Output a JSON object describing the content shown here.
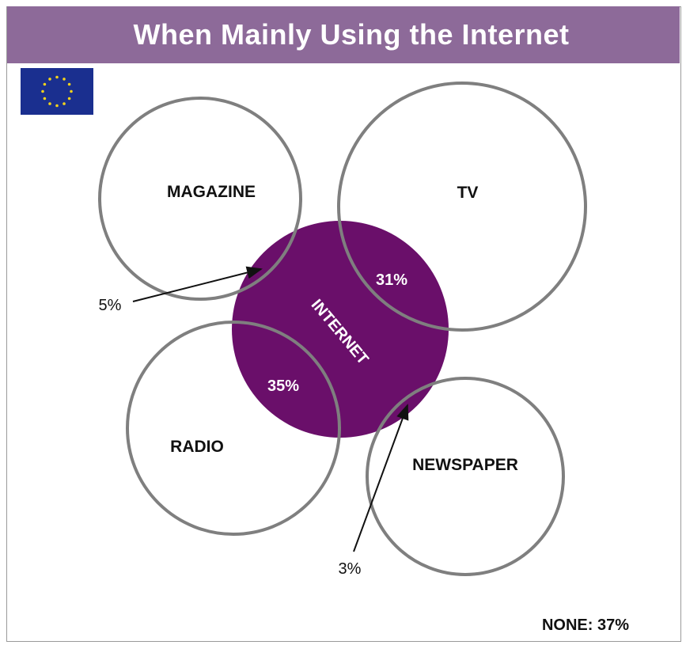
{
  "title": "When Mainly Using the Internet",
  "colors": {
    "header": "#8d6a99",
    "internet": "#6a0f6a",
    "circle_stroke": "#7f7f7f",
    "flag_blue": "#1a2f8f",
    "flag_star": "#f2d31b"
  },
  "circles": {
    "magazine": "MAGAZINE",
    "tv": "TV",
    "radio": "RADIO",
    "newspaper": "NEWSPAPER",
    "internet": "INTERNET"
  },
  "overlaps": {
    "tv": "31%",
    "radio": "35%",
    "magazine": "5%",
    "newspaper": "3%"
  },
  "none_label": "NONE: 37%"
}
